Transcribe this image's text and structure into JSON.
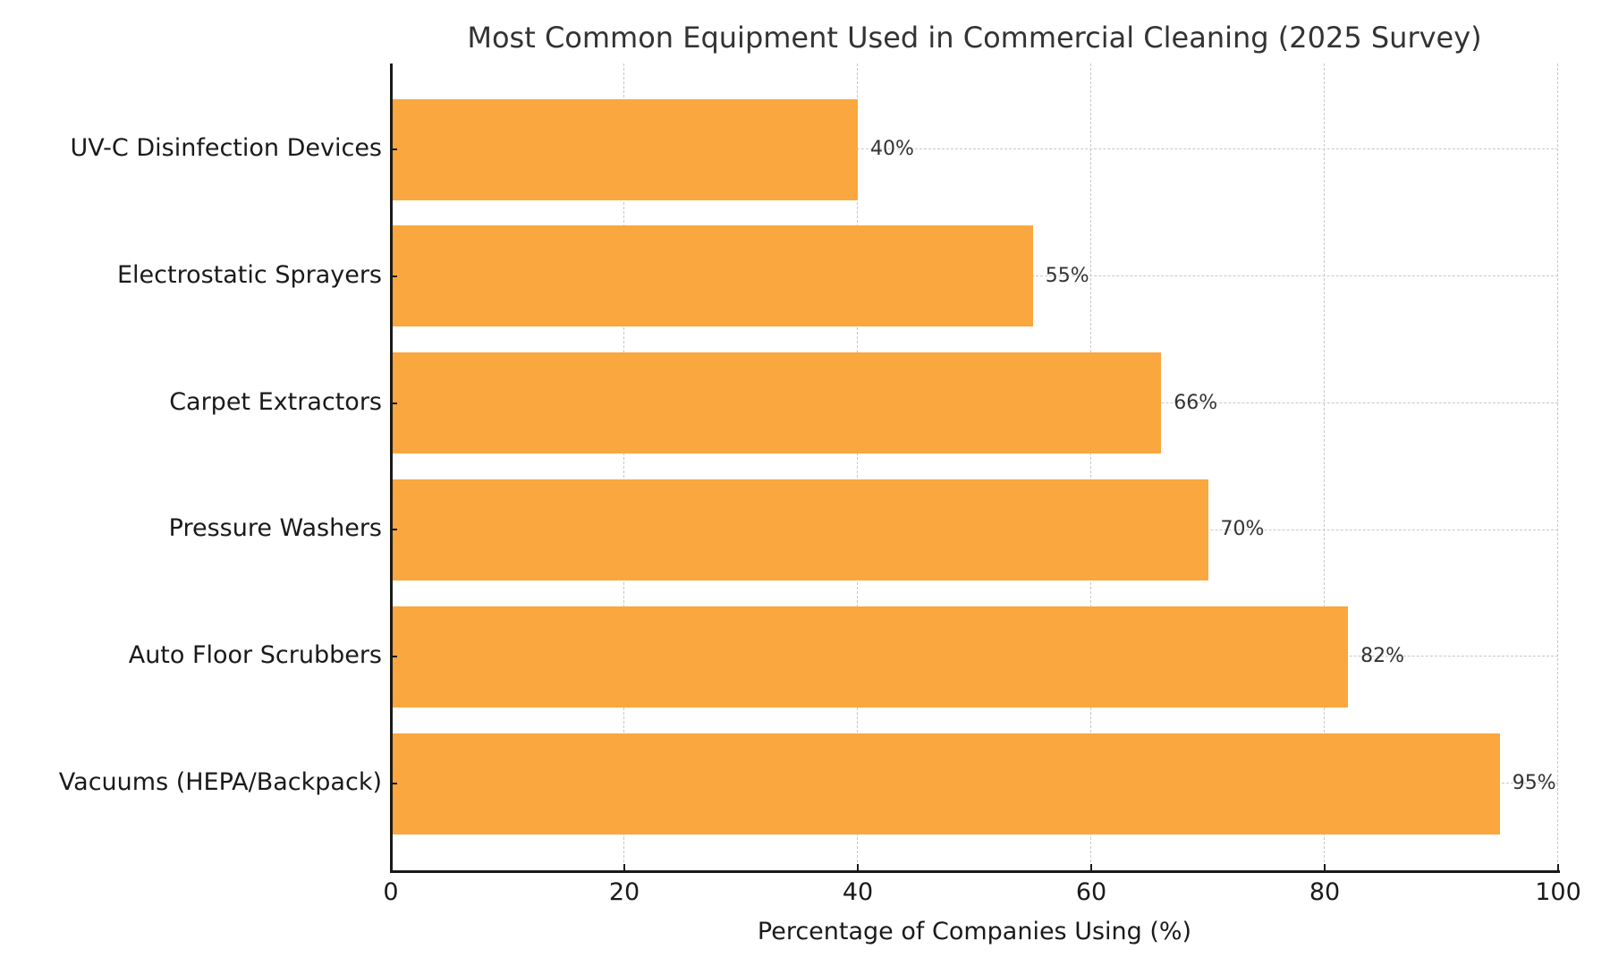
{
  "chart_data": {
    "type": "bar",
    "orientation": "horizontal",
    "title": "Most Common Equipment Used in Commercial Cleaning (2025 Survey)",
    "xlabel": "Percentage of Companies Using (%)",
    "ylabel": "",
    "xlim": [
      0,
      100
    ],
    "xticks": [
      0,
      20,
      40,
      60,
      80,
      100
    ],
    "grid": true,
    "grid_style": "dashed",
    "legend": null,
    "bar_color": "#F9A73E",
    "categories": [
      "UV-C Disinfection Devices",
      "Electrostatic Sprayers",
      "Carpet Extractors",
      "Pressure Washers",
      "Auto Floor Scrubbers",
      "Vacuums (HEPA/Backpack)"
    ],
    "values": [
      40,
      55,
      66,
      70,
      82,
      95
    ],
    "data_labels": [
      "40%",
      "55%",
      "66%",
      "70%",
      "82%",
      "95%"
    ]
  }
}
